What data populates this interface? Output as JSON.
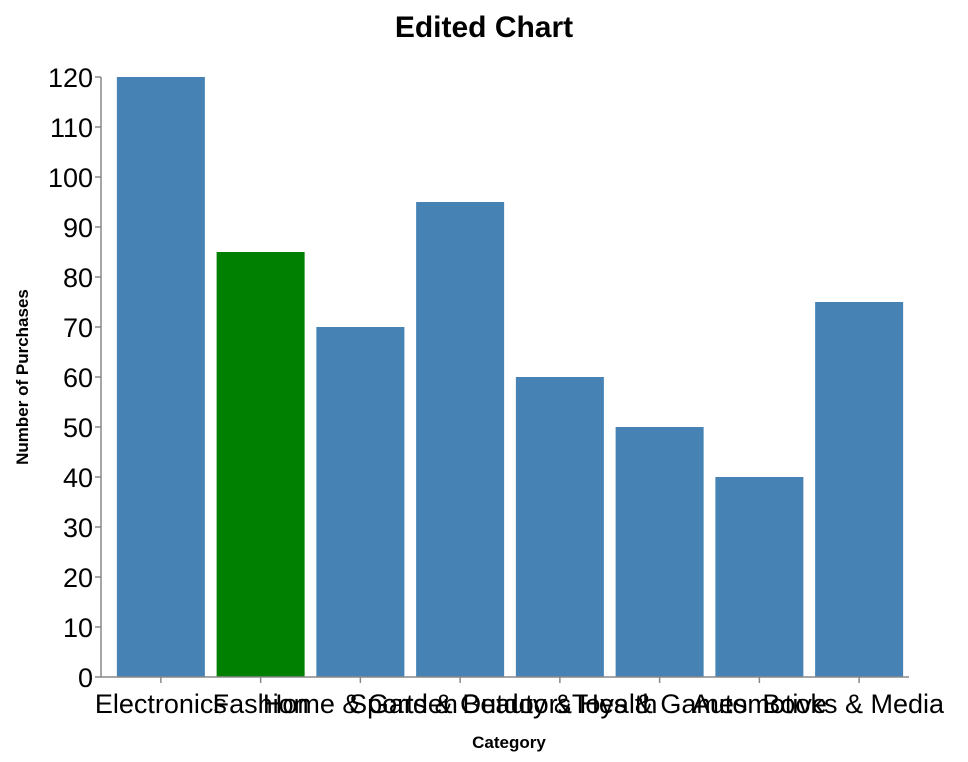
{
  "chart_data": {
    "type": "bar",
    "title": "Edited Chart",
    "xlabel": "Category",
    "ylabel": "Number of Purchases",
    "categories": [
      "Electronics",
      "Fashion",
      "Home & Garden",
      "Sports & Outdoors",
      "Beauty & Health",
      "Toys & Games",
      "Automotive",
      "Books & Media"
    ],
    "values": [
      120,
      85,
      70,
      95,
      60,
      50,
      40,
      75
    ],
    "colors": [
      "#4682b4",
      "#008000",
      "#4682b4",
      "#4682b4",
      "#4682b4",
      "#4682b4",
      "#4682b4",
      "#4682b4"
    ],
    "ylim": [
      0,
      120
    ],
    "yticks": [
      0,
      10,
      20,
      30,
      40,
      50,
      60,
      70,
      80,
      90,
      100,
      110,
      120
    ],
    "grid": false,
    "legend": "none"
  }
}
